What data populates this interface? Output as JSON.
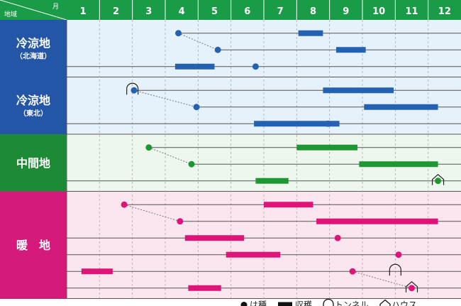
{
  "header": {
    "region_label": "地域",
    "month_label": "月"
  },
  "chart_data": {
    "type": "gantt",
    "months": [
      "1",
      "2",
      "3",
      "4",
      "5",
      "6",
      "7",
      "8",
      "9",
      "10",
      "11",
      "12"
    ],
    "regions": [
      {
        "id": "cold-hokkaido",
        "name": "冷涼地",
        "sub": "（北海道）",
        "label_color": "#2356a6",
        "bg_color": "#e6f2fb",
        "mark_color": "#2361b1",
        "rows": [
          {
            "sow": 4.4,
            "harvest": [
              [
                8.05,
                8.8
              ]
            ],
            "line_start": 4.4
          },
          {
            "sow": 5.6,
            "harvest": [
              [
                9.2,
                10.1
              ]
            ],
            "line_start": 5.6
          },
          {
            "sow": 6.75,
            "harvest": [
              [
                4.3,
                5.5
              ]
            ],
            "line_start": 1.0
          }
        ],
        "links": [
          [
            0,
            1
          ]
        ]
      },
      {
        "id": "cold-tohoku",
        "name": "冷涼地",
        "sub": "（東北）",
        "label_color": "#2356a6",
        "bg_color": "#e6f2fb",
        "mark_color": "#2361b1",
        "rows": [
          {
            "sow": 3.05,
            "tunnel": 3.0,
            "harvest": [
              [
                8.8,
                10.95
              ]
            ],
            "line_start": 3.05
          },
          {
            "sow": 4.95,
            "harvest": [
              [
                10.05,
                12.3
              ]
            ],
            "line_start": 4.95
          },
          {
            "sow": 8.95,
            "harvest": [
              [
                6.7,
                9.3
              ]
            ],
            "line_start": 1.0
          }
        ],
        "links": [
          [
            0,
            1
          ]
        ]
      },
      {
        "id": "middle",
        "name": "中間地",
        "sub": "",
        "label_color": "#1d8a35",
        "bg_color": "#eef7ee",
        "mark_color": "#1e9632",
        "rows": [
          {
            "sow": 3.5,
            "harvest": [
              [
                8.0,
                9.85
              ]
            ],
            "line_start": 3.5
          },
          {
            "sow": 4.8,
            "harvest": [
              [
                9.9,
                12.3
              ]
            ],
            "line_start": 4.8
          },
          {
            "sow": 12.3,
            "house": 12.3,
            "harvest": [
              [
                6.75,
                7.75
              ]
            ],
            "line_start": 1.0
          }
        ],
        "links": [
          [
            0,
            1
          ]
        ]
      },
      {
        "id": "warm",
        "name": "暖　地",
        "sub": "",
        "label_color": "#d61a7c",
        "bg_color": "#fbe6ef",
        "mark_color": "#df1479",
        "rows": [
          {
            "sow": 2.75,
            "harvest": [
              [
                7.0,
                8.5
              ]
            ],
            "line_start": 2.75
          },
          {
            "sow": 4.45,
            "harvest": [
              [
                8.6,
                12.3
              ]
            ],
            "line_start": 4.45
          },
          {
            "sow": 9.25,
            "harvest": [
              [
                4.6,
                6.4
              ]
            ],
            "line_start": 1.0
          },
          {
            "sow": 11.1,
            "harvest": [
              [
                5.85,
                7.5
              ]
            ],
            "line_start": 1.0
          },
          {
            "sow": 9.7,
            "tunnel": 11.0,
            "harvest": [
              [
                1.45,
                2.4
              ]
            ],
            "line_start": 1.0
          },
          {
            "sow": 11.5,
            "house": 11.5,
            "harvest": [
              [
                4.7,
                5.7
              ]
            ],
            "line_start": 1.0
          }
        ],
        "links": [
          [
            0,
            1
          ],
          [
            4,
            5
          ]
        ]
      }
    ],
    "legend": [
      {
        "icon": "dot",
        "label": "は種"
      },
      {
        "icon": "bar",
        "label": "収穫"
      },
      {
        "icon": "tunnel",
        "label": "トンネル"
      },
      {
        "icon": "house",
        "label": "ハウス"
      }
    ]
  }
}
